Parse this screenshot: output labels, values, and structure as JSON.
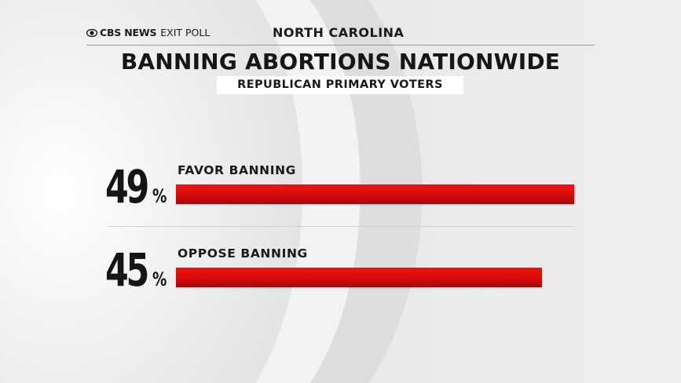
{
  "brand": {
    "logo": "CBS NEWS",
    "suffix": "EXIT POLL"
  },
  "state": "NORTH CAROLINA",
  "chart_data": {
    "type": "bar",
    "title": "BANNING ABORTIONS NATIONWIDE",
    "subtitle": "REPUBLICAN PRIMARY VOTERS",
    "categories": [
      "FAVOR BANNING",
      "OPPOSE BANNING"
    ],
    "values": [
      49,
      45
    ],
    "value_labels": [
      "49",
      "45"
    ],
    "unit": "%",
    "ylim": [
      0,
      49
    ],
    "bar_color": "#e10d0d"
  }
}
